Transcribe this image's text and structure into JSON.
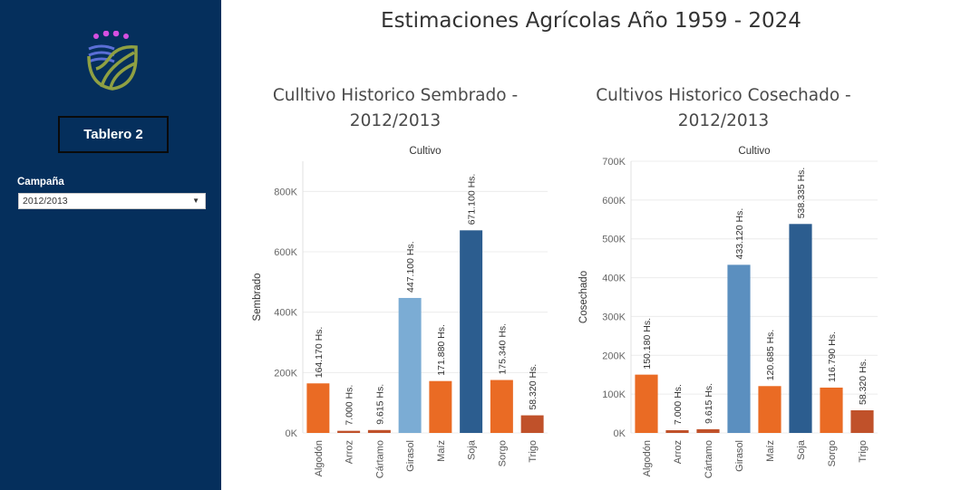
{
  "sidebar": {
    "tab_label": "Tablero 2",
    "filter_label": "Campaña",
    "filter_value": "2012/2013"
  },
  "page_title": "Estimaciones Agrícolas Año 1959 - 2024",
  "colors": {
    "sidebar_bg": "#052f5c",
    "orange": "#ea6b24",
    "dark_orange": "#c0512a",
    "light_blue": "#7bacd4",
    "steel_blue": "#5b8fbf",
    "dark_blue": "#2c5d8f"
  },
  "chart_data": [
    {
      "type": "bar",
      "title_line1": "Culltivo Historico Sembrado -",
      "title_line2": "2012/2013",
      "xlabel": "Cultivo",
      "ylabel": "Sembrado",
      "ylim": [
        0,
        900000
      ],
      "yticks": [
        0,
        200000,
        400000,
        600000,
        800000
      ],
      "ytick_labels": [
        "0K",
        "200K",
        "400K",
        "600K",
        "800K"
      ],
      "categories": [
        "Algodón",
        "Arroz",
        "Cártamo",
        "Girasol",
        "Maíz",
        "Soja",
        "Sorgo",
        "Trigo"
      ],
      "values": [
        164170,
        7000,
        9615,
        447100,
        171880,
        671100,
        175340,
        58320
      ],
      "data_labels": [
        "164.170 Hs.",
        "7.000 Hs.",
        "9.615 Hs.",
        "447.100 Hs.",
        "171.880 Hs.",
        "671.100 Hs.",
        "175.340 Hs.",
        "58.320 Hs."
      ],
      "bar_colors": [
        "#ea6b24",
        "#c0512a",
        "#c0512a",
        "#7bacd4",
        "#ea6b24",
        "#2c5d8f",
        "#ea6b24",
        "#c0512a"
      ]
    },
    {
      "type": "bar",
      "title_line1": "Cultivos Historico Cosechado -",
      "title_line2": "2012/2013",
      "xlabel": "Cultivo",
      "ylabel": "Cosechado",
      "ylim": [
        0,
        700000
      ],
      "yticks": [
        0,
        100000,
        200000,
        300000,
        400000,
        500000,
        600000,
        700000
      ],
      "ytick_labels": [
        "0K",
        "100K",
        "200K",
        "300K",
        "400K",
        "500K",
        "600K",
        "700K"
      ],
      "categories": [
        "Algodón",
        "Arroz",
        "Cártamo",
        "Girasol",
        "Maíz",
        "Soja",
        "Sorgo",
        "Trigo"
      ],
      "values": [
        150180,
        7000,
        9615,
        433120,
        120685,
        538335,
        116790,
        58320
      ],
      "data_labels": [
        "150.180 Hs.",
        "7.000 Hs.",
        "9.615 Hs.",
        "433.120 Hs.",
        "120.685 Hs.",
        "538.335 Hs.",
        "116.790 Hs.",
        "58.320 Hs."
      ],
      "bar_colors": [
        "#ea6b24",
        "#c0512a",
        "#c0512a",
        "#5b8fbf",
        "#ea6b24",
        "#2c5d8f",
        "#ea6b24",
        "#c0512a"
      ]
    }
  ]
}
